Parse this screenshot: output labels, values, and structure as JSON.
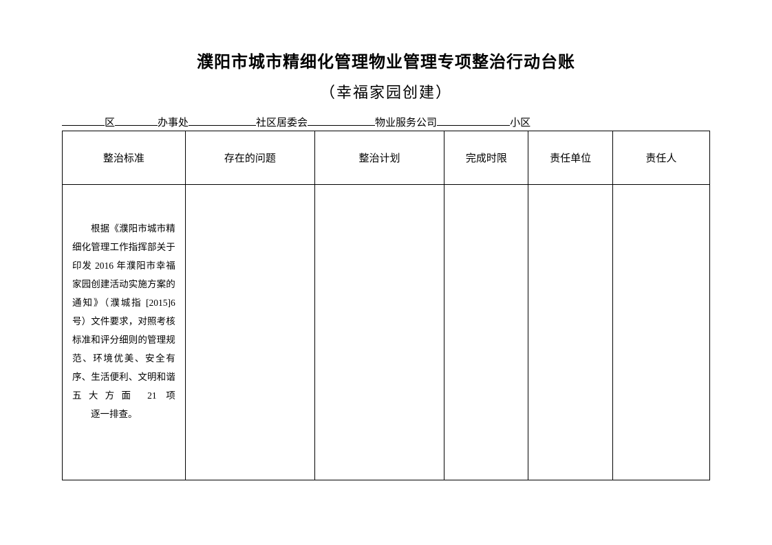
{
  "title": {
    "main": "濮阳市城市精细化管理物业管理专项整治行动台账",
    "sub": "（幸福家园创建）"
  },
  "fillLine": {
    "labels": [
      "区",
      "办事处",
      "社区居委会",
      "物业服务公司",
      "小区"
    ],
    "underlineWidths": [
      62,
      62,
      98,
      98,
      106
    ]
  },
  "table": {
    "columns": [
      "整治标准",
      "存在的问题",
      "整治计划",
      "完成时限",
      "责任单位",
      "责任人"
    ],
    "standardText": "根据《濮阳市城市精细化管理工作指挥部关于印发 2016 年濮阳市幸福家园创建活动实施方案的通知》（濮城指 [2015]6 号）文件要求，对照考核标准和评分细则的管理规范、环境优美、安全有序、生活便利、文明和谐五大方面 21 项",
    "standardTextLast": "逐一排查。"
  },
  "styling": {
    "background_color": "#ffffff",
    "border_color": "#000000",
    "title_fontsize": 24,
    "subtitle_fontsize": 22,
    "header_fontsize": 15,
    "body_fontsize": 13.5,
    "line_height": 2
  }
}
